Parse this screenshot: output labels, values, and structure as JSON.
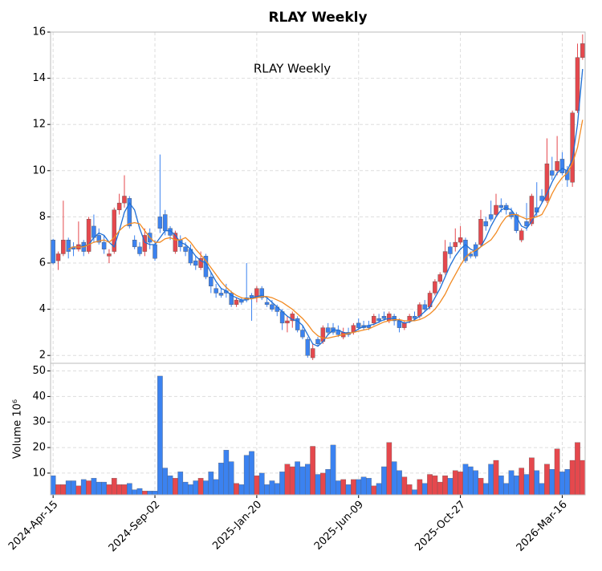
{
  "chart_data": {
    "type": "candlestick",
    "title": "RLAY  Weekly",
    "annotation": "RLAY  Weekly",
    "volume_label": "Volume  10⁶",
    "up_color": "#3b82f0",
    "down_color": "#e5484d",
    "grid": true,
    "dates": [
      "2024-04-15",
      "2024-04-22",
      "2024-04-29",
      "2024-05-06",
      "2024-05-13",
      "2024-05-20",
      "2024-05-27",
      "2024-06-03",
      "2024-06-10",
      "2024-06-17",
      "2024-06-24",
      "2024-07-01",
      "2024-07-08",
      "2024-07-15",
      "2024-07-22",
      "2024-07-29",
      "2024-08-05",
      "2024-08-12",
      "2024-08-19",
      "2024-08-26",
      "2024-09-02",
      "2024-09-09",
      "2024-09-16",
      "2024-09-23",
      "2024-09-30",
      "2024-10-07",
      "2024-10-14",
      "2024-10-21",
      "2024-10-28",
      "2024-11-04",
      "2024-11-11",
      "2024-11-18",
      "2024-11-25",
      "2024-12-02",
      "2024-12-09",
      "2024-12-16",
      "2024-12-23",
      "2024-12-30",
      "2025-01-06",
      "2025-01-13",
      "2025-01-20",
      "2025-01-27",
      "2025-02-03",
      "2025-02-10",
      "2025-02-17",
      "2025-02-24",
      "2025-03-03",
      "2025-03-10",
      "2025-03-17",
      "2025-03-24",
      "2025-03-31",
      "2025-04-07",
      "2025-04-14",
      "2025-04-21",
      "2025-04-28",
      "2025-05-05",
      "2025-05-12",
      "2025-05-19",
      "2025-05-26",
      "2025-06-02",
      "2025-06-09",
      "2025-06-16",
      "2025-06-23",
      "2025-06-30",
      "2025-07-07",
      "2025-07-14",
      "2025-07-21",
      "2025-07-28",
      "2025-08-04",
      "2025-08-11",
      "2025-08-18",
      "2025-08-25",
      "2025-09-01",
      "2025-09-08",
      "2025-09-15",
      "2025-09-22",
      "2025-09-29",
      "2025-10-06",
      "2025-10-13",
      "2025-10-20",
      "2025-10-27",
      "2025-11-03",
      "2025-11-10",
      "2025-11-17",
      "2025-11-24",
      "2025-12-01",
      "2025-12-08",
      "2025-12-15",
      "2025-12-22",
      "2025-12-29",
      "2026-01-05",
      "2026-01-12",
      "2026-01-19",
      "2026-01-26",
      "2026-02-02",
      "2026-02-09",
      "2026-02-16",
      "2026-02-23",
      "2026-03-02",
      "2026-03-09",
      "2026-03-16",
      "2026-03-23",
      "2026-03-30",
      "2026-04-06",
      "2026-04-13"
    ],
    "open": [
      6.0,
      6.4,
      7.0,
      6.5,
      6.6,
      6.8,
      6.5,
      7.9,
      7.1,
      6.9,
      6.6,
      6.4,
      8.3,
      8.6,
      8.9,
      7.6,
      6.7,
      6.4,
      7.2,
      6.9,
      6.2,
      7.5,
      7.4,
      7.2,
      7.3,
      6.7,
      6.5,
      6.0,
      5.9,
      6.2,
      5.4,
      5.0,
      4.7,
      4.6,
      4.7,
      4.2,
      4.4,
      4.3,
      4.4,
      4.5,
      4.9,
      4.5,
      4.2,
      4.0,
      3.9,
      3.4,
      3.5,
      3.8,
      3.1,
      2.8,
      2.0,
      2.3,
      2.5,
      3.2,
      3.0,
      3.0,
      2.9,
      3.0,
      2.9,
      3.3,
      3.2,
      3.2,
      3.2,
      3.7,
      3.5,
      3.6,
      3.8,
      3.5,
      3.2,
      3.4,
      3.7,
      3.6,
      4.2,
      4.0,
      4.7,
      5.2,
      5.5,
      6.5,
      6.4,
      6.9,
      7.1,
      6.1,
      6.3,
      6.3,
      7.9,
      7.6,
      7.9,
      8.5,
      8.4,
      8.3,
      8.0,
      7.4,
      7.4,
      7.6,
      8.9,
      8.2,
      8.7,
      10.3,
      9.8,
      10.4,
      9.9,
      9.6,
      12.5,
      14.9,
      15.5
    ],
    "high": [
      7.05,
      6.5,
      8.7,
      7.1,
      6.9,
      7.8,
      7.0,
      8.0,
      8.1,
      7.5,
      7.2,
      6.6,
      8.4,
      9.0,
      9.8,
      8.9,
      7.2,
      6.9,
      7.5,
      7.5,
      7.0,
      10.7,
      8.3,
      7.6,
      7.4,
      7.2,
      6.9,
      6.8,
      6.3,
      6.5,
      6.4,
      5.6,
      5.1,
      4.9,
      5.1,
      4.8,
      4.5,
      4.5,
      6.0,
      4.7,
      5.0,
      5.0,
      4.5,
      4.4,
      4.2,
      4.0,
      3.7,
      3.9,
      3.7,
      3.3,
      2.8,
      2.5,
      2.8,
      3.3,
      3.4,
      3.4,
      3.3,
      3.2,
      3.2,
      3.4,
      3.6,
      3.5,
      3.5,
      3.8,
      3.8,
      3.9,
      3.9,
      3.8,
      3.6,
      3.5,
      3.8,
      3.9,
      4.3,
      4.4,
      4.8,
      5.3,
      5.6,
      7.0,
      6.9,
      7.5,
      7.6,
      7.1,
      6.5,
      6.9,
      8.3,
      8.0,
      8.7,
      9.0,
      8.8,
      8.6,
      8.4,
      8.2,
      7.5,
      8.6,
      9.0,
      9.5,
      9.2,
      11.4,
      10.6,
      11.5,
      10.8,
      10.2,
      12.6,
      15.5,
      15.9
    ],
    "low": [
      5.95,
      5.7,
      6.3,
      6.2,
      6.3,
      6.5,
      6.3,
      6.4,
      6.9,
      6.8,
      6.4,
      6.0,
      6.4,
      8.1,
      8.4,
      7.5,
      6.6,
      6.3,
      6.3,
      6.6,
      6.1,
      7.3,
      7.2,
      7.0,
      6.4,
      6.5,
      6.3,
      5.9,
      5.7,
      5.7,
      5.3,
      4.7,
      4.5,
      4.5,
      4.5,
      4.1,
      4.1,
      4.2,
      4.3,
      3.5,
      4.3,
      4.4,
      4.1,
      3.9,
      3.7,
      3.1,
      3.0,
      3.2,
      3.0,
      2.7,
      1.9,
      1.8,
      2.4,
      2.5,
      2.9,
      2.9,
      2.8,
      2.7,
      2.8,
      2.9,
      3.1,
      3.1,
      3.1,
      3.3,
      3.4,
      3.5,
      3.4,
      3.3,
      3.0,
      3.1,
      3.4,
      3.5,
      3.6,
      3.9,
      4.0,
      4.6,
      5.1,
      5.5,
      6.2,
      6.5,
      6.8,
      6.0,
      6.2,
      6.2,
      6.7,
      7.4,
      7.8,
      8.0,
      8.2,
      8.1,
      7.9,
      7.3,
      6.9,
      7.4,
      7.6,
      8.0,
      8.6,
      8.6,
      9.6,
      9.8,
      9.8,
      9.3,
      9.3,
      12.5,
      14.8
    ],
    "close": [
      7.0,
      6.1,
      6.4,
      7.0,
      6.7,
      6.6,
      6.9,
      6.5,
      7.6,
      7.2,
      6.9,
      6.3,
      6.5,
      8.3,
      8.6,
      8.8,
      7.0,
      6.7,
      6.5,
      7.3,
      6.8,
      8.0,
      8.1,
      7.5,
      6.5,
      7.0,
      6.7,
      6.6,
      6.1,
      5.8,
      6.3,
      5.4,
      4.9,
      4.7,
      4.8,
      4.7,
      4.2,
      4.4,
      4.5,
      4.6,
      4.5,
      4.9,
      4.3,
      4.2,
      4.1,
      3.9,
      3.4,
      3.5,
      3.6,
      3.1,
      2.7,
      1.9,
      2.7,
      2.6,
      3.2,
      3.2,
      3.1,
      2.8,
      3.0,
      3.0,
      3.4,
      3.3,
      3.3,
      3.4,
      3.6,
      3.7,
      3.5,
      3.7,
      3.5,
      3.2,
      3.5,
      3.7,
      3.7,
      4.2,
      4.1,
      4.7,
      5.2,
      5.6,
      6.7,
      6.7,
      6.9,
      7.0,
      6.4,
      6.8,
      6.8,
      7.8,
      8.1,
      8.1,
      8.5,
      8.5,
      8.2,
      8.1,
      7.0,
      7.8,
      7.7,
      8.4,
      8.9,
      8.7,
      10.0,
      10.0,
      10.5,
      10.0,
      9.5,
      12.6,
      14.9
    ],
    "volume": [
      9,
      5.5,
      5.5,
      7,
      7,
      5,
      7.5,
      7,
      8,
      6.5,
      6.5,
      5.5,
      8,
      5.5,
      5.5,
      6,
      3.5,
      4,
      3,
      3,
      3,
      48,
      12,
      9,
      8,
      10.5,
      6.5,
      5.5,
      7,
      8,
      7,
      10.5,
      7.5,
      14,
      19,
      14.5,
      6,
      5.5,
      17,
      18.5,
      9,
      10,
      5.5,
      7,
      6,
      10.5,
      13.5,
      12.5,
      14.5,
      12.5,
      13.5,
      20.5,
      9.5,
      10,
      11.5,
      21,
      7,
      7.5,
      5.5,
      7.5,
      7.5,
      8.5,
      8,
      5,
      6,
      12.5,
      22,
      14.5,
      11,
      8.5,
      5.5,
      3.5,
      7.5,
      6,
      9.5,
      9,
      6.5,
      9,
      8,
      11,
      10.5,
      13.5,
      12.5,
      11,
      8,
      6,
      13.5,
      15,
      9,
      6,
      11,
      9,
      12,
      9.5,
      16,
      11,
      6,
      13.5,
      11.5,
      19.5,
      10.5,
      11.5,
      15,
      22,
      15
    ],
    "lines": [
      {
        "color": "#1f6fd6",
        "values": [
          null,
          null,
          null,
          6.6,
          6.7,
          6.7,
          6.75,
          6.8,
          7.1,
          7.3,
          7.2,
          6.9,
          6.7,
          7.4,
          8.2,
          8.6,
          8.3,
          7.5,
          6.9,
          6.8,
          6.8,
          7.1,
          7.4,
          7.4,
          7.2,
          6.9,
          6.8,
          6.6,
          6.3,
          6.1,
          6.0,
          5.6,
          5.2,
          4.9,
          4.8,
          4.6,
          4.5,
          4.4,
          4.4,
          4.5,
          4.55,
          4.6,
          4.5,
          4.3,
          4.1,
          3.9,
          3.7,
          3.55,
          3.5,
          3.3,
          2.9,
          2.5,
          2.4,
          2.6,
          2.9,
          3.1,
          3.1,
          3.0,
          2.95,
          3.0,
          3.15,
          3.25,
          3.3,
          3.35,
          3.45,
          3.55,
          3.6,
          3.6,
          3.5,
          3.4,
          3.45,
          3.55,
          3.7,
          3.9,
          4.1,
          4.5,
          4.9,
          5.4,
          5.9,
          6.3,
          6.6,
          6.8,
          6.6,
          6.5,
          6.7,
          7.1,
          7.6,
          8.0,
          8.3,
          8.4,
          8.3,
          8.0,
          7.6,
          7.5,
          7.8,
          8.2,
          8.6,
          9.0,
          9.5,
          9.9,
          10.1,
          10.0,
          10.5,
          12.0,
          14.4
        ]
      },
      {
        "color": "#f28a22",
        "values": [
          null,
          null,
          null,
          6.6,
          6.7,
          6.7,
          6.7,
          6.8,
          6.9,
          6.95,
          7.0,
          6.9,
          7.1,
          7.4,
          7.6,
          7.7,
          7.75,
          7.7,
          7.4,
          7.1,
          6.9,
          6.9,
          7.05,
          7.1,
          7.0,
          7.0,
          7.1,
          6.9,
          6.6,
          6.35,
          6.1,
          5.8,
          5.5,
          5.2,
          4.95,
          4.75,
          4.6,
          4.5,
          4.45,
          4.45,
          4.5,
          4.55,
          4.55,
          4.5,
          4.4,
          4.3,
          4.15,
          4.0,
          3.8,
          3.6,
          3.35,
          3.05,
          2.85,
          2.75,
          2.75,
          2.8,
          2.85,
          2.9,
          2.95,
          3.0,
          3.05,
          3.1,
          3.15,
          3.25,
          3.35,
          3.45,
          3.5,
          3.55,
          3.55,
          3.5,
          3.5,
          3.5,
          3.55,
          3.65,
          3.8,
          4.0,
          4.3,
          4.65,
          5.1,
          5.5,
          5.9,
          6.25,
          6.45,
          6.55,
          6.7,
          6.85,
          7.0,
          7.3,
          7.7,
          8.0,
          8.1,
          8.1,
          8.0,
          7.9,
          7.95,
          8.0,
          8.1,
          8.5,
          9.0,
          9.4,
          9.7,
          9.9,
          10.3,
          11.0,
          12.2
        ]
      }
    ],
    "ylim": [
      1.66,
      16
    ],
    "yticks": [
      2,
      4,
      6,
      8,
      10,
      12,
      14,
      16
    ],
    "volume_ylim": [
      1.5,
      53
    ],
    "volume_yticks": [
      10,
      20,
      30,
      40,
      50
    ],
    "xticks": [
      {
        "value": "2024-04-15",
        "label": "2024-Apr-15"
      },
      {
        "value": "2024-09-02",
        "label": "2024-Sep-02"
      },
      {
        "value": "2025-01-20",
        "label": "2025-Jan-20"
      },
      {
        "value": "2025-06-09",
        "label": "2025-Jun-09"
      },
      {
        "value": "2025-10-27",
        "label": "2025-Oct-27"
      },
      {
        "value": "2026-03-16",
        "label": "2026-Mar-16"
      }
    ]
  }
}
